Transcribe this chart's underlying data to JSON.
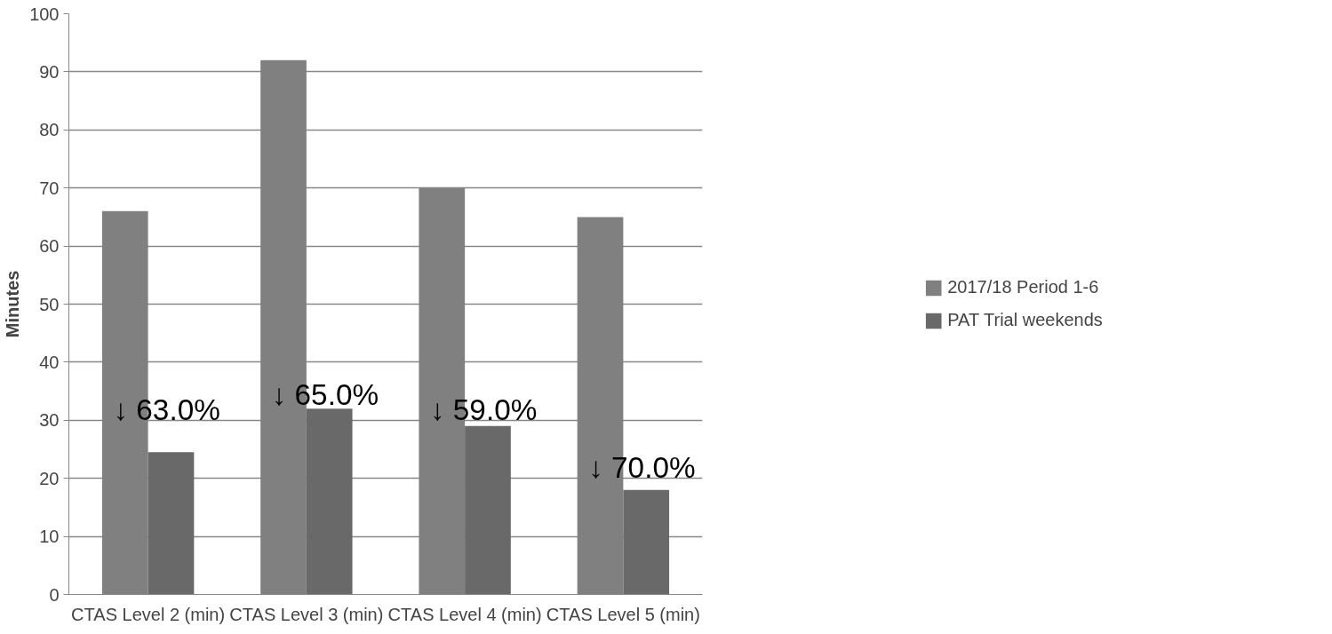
{
  "chart_data": {
    "type": "bar",
    "ylabel": "Minutes",
    "categories": [
      "CTAS Level 2 (min)",
      "CTAS Level 3 (min)",
      "CTAS Level 4 (min)",
      "CTAS Level 5 (min)"
    ],
    "series": [
      {
        "name": "2017/18 Period 1-6",
        "color": "#808080",
        "values": [
          66,
          92,
          70,
          65
        ]
      },
      {
        "name": "PAT Trial weekends",
        "color": "#696969",
        "values": [
          24.5,
          32,
          29,
          18
        ]
      }
    ],
    "ylim": [
      0,
      100
    ],
    "yticks": [
      0,
      10,
      20,
      30,
      40,
      50,
      60,
      70,
      80,
      90,
      100
    ],
    "grid": "y",
    "legend": "right",
    "annotations": [
      {
        "text": "↓ 63.0%",
        "x": "CTAS Level 2 (min)",
        "y": 29
      },
      {
        "text": "↓ 65.0%",
        "x": "CTAS Level 3 (min)",
        "y": 31.5
      },
      {
        "text": "↓ 59.0%",
        "x": "CTAS Level 4 (min)",
        "y": 29
      },
      {
        "text": "↓ 70.0%",
        "x": "CTAS Level 5 (min)",
        "y": 19
      }
    ]
  }
}
